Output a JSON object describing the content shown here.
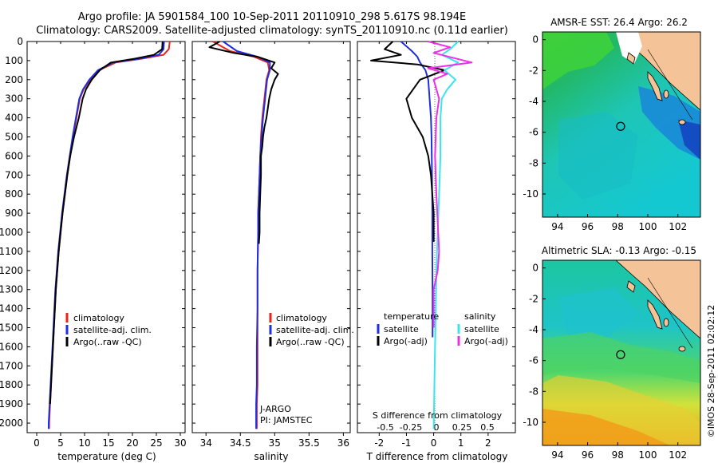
{
  "header": {
    "line1": "Argo profile: JA 5901584_100 10-Sep-2011 20110910_298 5.617S 98.194E",
    "line2": "Climatology: CARS2009. Satellite-adjusted climatology: synTS_20110910.nc (0.11d earlier)"
  },
  "footer_stamp": "©IMOS 28-Sep-2011 02:02:12",
  "colors": {
    "climatology": "#e8231e",
    "satellite": "#1f2ee0",
    "argo": "#000000",
    "satellite_s": "#39e6ee",
    "argo_s": "#ee2fe8",
    "land": "#f5c398"
  },
  "chart_data": [
    {
      "type": "line",
      "panel": "temperature",
      "xlabel": "temperature (deg C)",
      "ylabel": "",
      "xlim": [
        -2,
        31
      ],
      "ylim": [
        2050,
        0
      ],
      "xticks": [
        0,
        5,
        10,
        15,
        20,
        25,
        30
      ],
      "yticks": [
        0,
        100,
        200,
        300,
        400,
        500,
        600,
        700,
        800,
        900,
        1000,
        1100,
        1200,
        1300,
        1400,
        1500,
        1600,
        1700,
        1800,
        1900,
        2000
      ],
      "legend": [
        "climatology",
        "satellite-adj. clim.",
        "Argo(..raw -QC)"
      ],
      "legend_position": "bottom-right",
      "series": [
        {
          "name": "climatology",
          "color_key": "climatology",
          "x": [
            27.8,
            27.6,
            26.5,
            22.0,
            16.5,
            13.0,
            11.2,
            9.8,
            9.0,
            8.3,
            7.6,
            7.0,
            6.4,
            5.9,
            5.4,
            5.0,
            4.6,
            4.3,
            4.0,
            3.8,
            3.6,
            3.4,
            3.2,
            3.0,
            2.9,
            2.8,
            2.7,
            2.6,
            2.6
          ],
          "y": [
            0,
            40,
            70,
            90,
            110,
            150,
            200,
            250,
            300,
            400,
            500,
            600,
            700,
            800,
            900,
            1000,
            1100,
            1200,
            1300,
            1400,
            1500,
            1600,
            1700,
            1800,
            1850,
            1900,
            1950,
            2000,
            2030
          ]
        },
        {
          "name": "satellite-adj. clim.",
          "color_key": "satellite",
          "x": [
            26.6,
            26.5,
            25.5,
            21.5,
            16.0,
            12.8,
            11.0,
            9.7,
            8.9,
            8.2,
            7.5,
            6.9,
            6.3,
            5.8,
            5.3,
            4.9,
            4.5,
            4.2,
            3.9,
            3.7,
            3.5,
            3.3,
            3.1,
            2.9,
            2.8,
            2.7,
            2.6,
            2.5,
            2.5
          ],
          "y": [
            0,
            40,
            70,
            90,
            110,
            150,
            200,
            250,
            300,
            400,
            500,
            600,
            700,
            800,
            900,
            1000,
            1100,
            1200,
            1300,
            1400,
            1500,
            1600,
            1700,
            1800,
            1850,
            1900,
            1950,
            2000,
            2030
          ]
        },
        {
          "name": "Argo(..raw -QC)",
          "color_key": "argo",
          "x": [
            26.3,
            26.2,
            24.5,
            20.5,
            15.5,
            13.2,
            11.5,
            10.3,
            9.6,
            8.8,
            7.8,
            7.0,
            6.4,
            5.9,
            5.4,
            5.0,
            4.6,
            4.3,
            4.0,
            3.8,
            3.6,
            3.4,
            3.2,
            3.0,
            2.9,
            2.8
          ],
          "y": [
            0,
            40,
            70,
            90,
            110,
            150,
            200,
            250,
            300,
            400,
            500,
            600,
            700,
            800,
            900,
            1000,
            1100,
            1200,
            1300,
            1400,
            1500,
            1600,
            1700,
            1800,
            1850,
            1900
          ]
        }
      ]
    },
    {
      "type": "line",
      "panel": "salinity",
      "xlabel": "salinity",
      "ylabel": "",
      "xlim": [
        33.8,
        36.1
      ],
      "ylim": [
        2050,
        0
      ],
      "xticks": [
        34,
        34.5,
        35,
        35.5,
        36
      ],
      "legend": [
        "climatology",
        "satellite-adj. clim.",
        "Argo(..raw -QC)"
      ],
      "legend_position": "bottom-right",
      "annotations": [
        "J-ARGO",
        "PI: JAMSTEC"
      ],
      "series": [
        {
          "name": "climatology",
          "color_key": "climatology",
          "x": [
            34.1,
            34.35,
            34.7,
            34.9,
            34.92,
            34.88,
            34.85,
            34.82,
            34.8,
            34.79,
            34.78,
            34.77,
            34.76,
            34.76,
            34.75,
            34.75,
            34.75,
            34.75,
            34.74,
            34.74,
            34.74,
            34.74
          ],
          "y": [
            0,
            50,
            80,
            110,
            150,
            200,
            300,
            400,
            500,
            600,
            700,
            800,
            900,
            1000,
            1200,
            1400,
            1600,
            1800,
            1900,
            1950,
            2000,
            2030
          ]
        },
        {
          "name": "satellite-adj. clim.",
          "color_key": "satellite",
          "x": [
            34.25,
            34.45,
            34.75,
            34.93,
            34.93,
            34.89,
            34.86,
            34.83,
            34.81,
            34.79,
            34.78,
            34.77,
            34.76,
            34.76,
            34.75,
            34.75,
            34.74,
            34.74,
            34.73,
            34.73,
            34.73
          ],
          "y": [
            0,
            50,
            80,
            110,
            150,
            200,
            300,
            400,
            500,
            600,
            700,
            800,
            900,
            1000,
            1200,
            1400,
            1600,
            1800,
            1900,
            1950,
            2030
          ]
        },
        {
          "name": "Argo(..raw -QC)",
          "color_key": "argo",
          "x": [
            34.2,
            34.05,
            34.4,
            34.75,
            35.0,
            34.95,
            35.05,
            35.0,
            34.95,
            34.92,
            34.9,
            34.88,
            34.85,
            34.83,
            34.82,
            34.8,
            34.8,
            34.79,
            34.78,
            34.78,
            34.77
          ],
          "y": [
            0,
            30,
            60,
            80,
            110,
            140,
            170,
            200,
            250,
            300,
            350,
            400,
            450,
            500,
            550,
            600,
            700,
            800,
            900,
            1000,
            1060
          ]
        }
      ]
    },
    {
      "type": "line",
      "panel": "differences",
      "xlabel": "T difference from climatology",
      "xlabel_top": "S difference from climatology",
      "xlim": [
        -2.8,
        3.0
      ],
      "ylim": [
        2050,
        0
      ],
      "xticks": [
        -2,
        -1,
        0,
        1,
        2
      ],
      "xticks_s": [
        "-0.5",
        "-0.25",
        "0",
        "0.25",
        "0.5"
      ],
      "legend": [
        "temperature",
        "satellite",
        "Argo(-adj)",
        "salinity",
        "satellite",
        "Argo(-adj)"
      ],
      "legend_position": "bottom",
      "series": [
        {
          "name": "satellite",
          "group": "temperature",
          "color_key": "satellite",
          "x": [
            -1.2,
            -0.8,
            -0.6,
            -0.5,
            -0.3,
            -0.2,
            -0.15,
            -0.1,
            -0.08,
            -0.06,
            -0.05,
            -0.05,
            -0.04,
            -0.04,
            -0.04
          ],
          "y": [
            0,
            50,
            80,
            110,
            150,
            200,
            300,
            400,
            500,
            700,
            900,
            1100,
            1300,
            1500,
            1550
          ]
        },
        {
          "name": "Argo(-adj)",
          "group": "temperature",
          "color_key": "argo",
          "x": [
            -1.5,
            -1.8,
            -1.2,
            -2.3,
            -0.6,
            0.4,
            -0.5,
            -1.0,
            -0.8,
            -0.4,
            -0.2,
            -0.1,
            -0.05,
            0.0,
            0.0,
            0.0
          ],
          "y": [
            0,
            40,
            70,
            100,
            120,
            150,
            200,
            300,
            400,
            500,
            600,
            700,
            800,
            900,
            1000,
            1050
          ]
        },
        {
          "name": "satellite",
          "group": "salinity",
          "color_key": "satellite_s",
          "x": [
            0.9,
            0.6,
            0.3,
            0.9,
            0.4,
            0.8,
            0.5,
            0.3,
            0.25,
            0.25,
            0.2,
            0.15,
            0.1,
            0.08,
            0.05,
            0.0
          ],
          "y": [
            0,
            40,
            70,
            110,
            150,
            200,
            250,
            300,
            400,
            600,
            800,
            1000,
            1200,
            1400,
            1600,
            2030
          ]
        },
        {
          "name": "Argo(-adj)",
          "group": "salinity",
          "color_key": "argo_s",
          "x": [
            -0.2,
            0.6,
            0.0,
            1.4,
            -0.2,
            0.5,
            0.0,
            0.2,
            0.1,
            0.05,
            0.1,
            0.2,
            0.15,
            0.0,
            0.0,
            0.0
          ],
          "y": [
            0,
            30,
            60,
            110,
            140,
            170,
            200,
            300,
            400,
            600,
            800,
            1100,
            1200,
            1300,
            1400,
            1500
          ]
        }
      ]
    },
    {
      "type": "heatmap",
      "panel": "sst_map",
      "title": "AMSR-E SST: 26.4  Argo: 26.2",
      "xlim": [
        93,
        103.5
      ],
      "ylim": [
        -11.5,
        0.5
      ],
      "xticks": [
        94,
        96,
        98,
        100,
        102
      ],
      "yticks": [
        0,
        -2,
        -4,
        -6,
        -8,
        -10
      ],
      "argo_position": [
        98.194,
        -5.617
      ]
    },
    {
      "type": "heatmap",
      "panel": "sla_map",
      "title": "Altimetric SLA: -0.13  Argo: -0.15",
      "xlim": [
        93,
        103.5
      ],
      "ylim": [
        -11.5,
        0.5
      ],
      "xticks": [
        94,
        96,
        98,
        100,
        102
      ],
      "yticks": [
        0,
        -2,
        -4,
        -6,
        -8,
        -10
      ],
      "argo_position": [
        98.194,
        -5.617
      ]
    }
  ]
}
